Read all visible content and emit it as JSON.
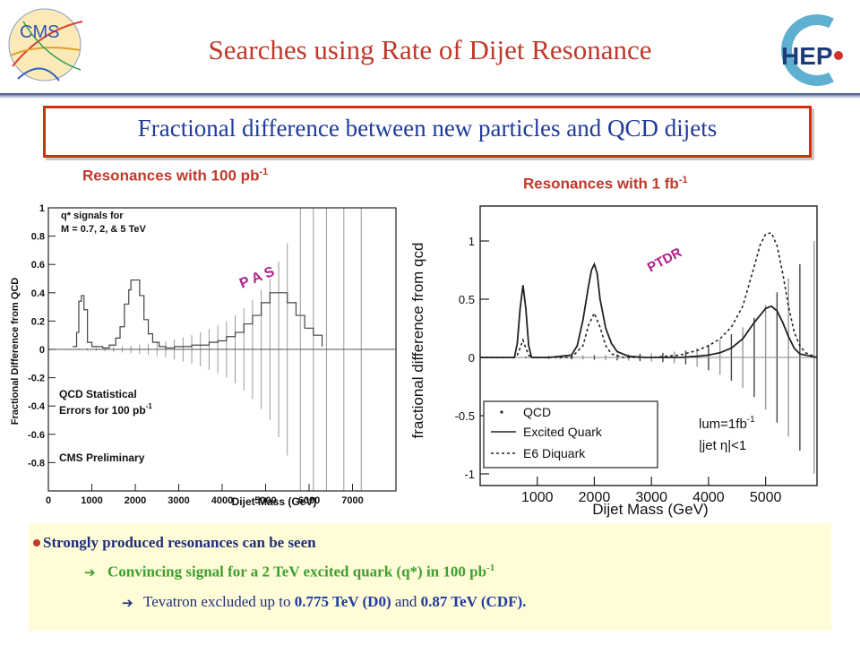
{
  "slide": {
    "title": "Searches using Rate of Dijet Resonance",
    "subtitle": "Fractional difference between new particles and QCD dijets",
    "logos": {
      "left": "CMS",
      "right": "HEP"
    }
  },
  "bullets": {
    "b1": "Strongly produced resonances can be seen",
    "b2": "Convincing signal for a 2 TeV excited quark (q*) in 100 pb",
    "b2_sup": "-1",
    "b3_pre": "Tevatron excluded up to",
    "b3_v1": "0.775 TeV (D0)",
    "b3_mid": "and",
    "b3_v2": "0.87 TeV (CDF)."
  },
  "chart_data": [
    {
      "type": "line",
      "panel_title": "Resonances with 100 pb",
      "panel_title_sup": "-1",
      "stamp": "P A S",
      "xlabel": "Dijet Mass (GeV)",
      "ylabel": "Fractional Difference from QCD",
      "xlim": [
        0,
        8000
      ],
      "ylim": [
        -1,
        1
      ],
      "xticks": [
        0,
        1000,
        2000,
        3000,
        4000,
        5000,
        6000,
        7000
      ],
      "yticks": [
        -0.8,
        -0.6,
        -0.4,
        -0.2,
        0,
        0.2,
        0.4,
        0.6,
        0.8,
        1
      ],
      "annotations": {
        "signals_l1": "q* signals for",
        "signals_l2": "M = 0.7, 2, & 5 TeV",
        "qcd_l1": "QCD Statistical",
        "qcd_l2": "Errors for 100 pb",
        "qcd_l2_sup": "-1",
        "prelim": "CMS Preliminary"
      },
      "series": [
        {
          "x": [
            560,
            650,
            700,
            760,
            820,
            900,
            1000,
            1100,
            1250,
            1400,
            1550,
            1650,
            1750,
            1850,
            1900,
            2000,
            2100,
            2200,
            2300,
            2400,
            2550,
            2700,
            2900,
            3100,
            3300,
            3500,
            3700,
            3900,
            4100,
            4300,
            4500,
            4700,
            4900,
            5100,
            5300,
            5500,
            5700,
            5900,
            6100,
            6300
          ],
          "y": [
            0.02,
            0.12,
            0.34,
            0.38,
            0.28,
            0.05,
            0.02,
            0.02,
            0.01,
            0.03,
            0.08,
            0.16,
            0.32,
            0.42,
            0.49,
            0.49,
            0.38,
            0.21,
            0.11,
            0.05,
            0.02,
            0.01,
            0.02,
            0.02,
            0.03,
            0.03,
            0.05,
            0.06,
            0.09,
            0.12,
            0.18,
            0.24,
            0.33,
            0.4,
            0.4,
            0.33,
            0.24,
            0.15,
            0.1,
            0.02
          ]
        }
      ],
      "error_bars": {
        "x": [
          500,
          700,
          900,
          1100,
          1300,
          1500,
          1700,
          1900,
          2100,
          2300,
          2500,
          2700,
          2900,
          3100,
          3300,
          3500,
          3700,
          3900,
          4100,
          4300,
          4500,
          4700,
          4900,
          5100,
          5300,
          5500,
          5800,
          6100,
          6400,
          6800,
          7200
        ],
        "err": [
          0.004,
          0.006,
          0.008,
          0.011,
          0.014,
          0.018,
          0.022,
          0.027,
          0.033,
          0.04,
          0.048,
          0.058,
          0.07,
          0.085,
          0.1,
          0.12,
          0.145,
          0.17,
          0.2,
          0.24,
          0.29,
          0.35,
          0.42,
          0.5,
          0.62,
          0.75,
          1,
          1,
          1,
          1,
          1
        ]
      }
    },
    {
      "type": "line",
      "panel_title": "Resonances with 1 fb",
      "panel_title_sup": "-1",
      "stamp": "PTDR",
      "xlabel": "Dijet Mass (GeV)",
      "ylabel": "fractional difference from qcd",
      "xlim": [
        0,
        5900
      ],
      "ylim": [
        -1.1,
        1.3
      ],
      "xticks": [
        1000,
        2000,
        3000,
        4000,
        5000
      ],
      "yticks": [
        -1,
        -0.5,
        0,
        0.5,
        1
      ],
      "legend": {
        "placement": "bottom-left",
        "entries": [
          "QCD",
          "Excited Quark",
          "E6 Diquark"
        ]
      },
      "annotations": {
        "lum": "lum=1fb",
        "lum_sup": "-1",
        "eta": "|jet η|<1"
      },
      "series": [
        {
          "name": "Excited Quark",
          "x": [
            0,
            400,
            600,
            650,
            700,
            750,
            800,
            850,
            900,
            1200,
            1600,
            1700,
            1800,
            1900,
            1950,
            2000,
            2050,
            2100,
            2200,
            2300,
            2400,
            2600,
            2900,
            3200,
            3500,
            3800,
            4000,
            4200,
            4400,
            4600,
            4800,
            5000,
            5100,
            5200,
            5300,
            5400,
            5500,
            5600,
            5900
          ],
          "y": [
            0,
            0,
            0,
            0.12,
            0.42,
            0.62,
            0.42,
            0.1,
            0,
            0,
            0.02,
            0.1,
            0.32,
            0.62,
            0.75,
            0.8,
            0.72,
            0.5,
            0.25,
            0.12,
            0.05,
            0.01,
            0,
            0,
            0,
            0.01,
            0.02,
            0.04,
            0.08,
            0.16,
            0.3,
            0.42,
            0.44,
            0.4,
            0.3,
            0.18,
            0.08,
            0.03,
            0
          ]
        },
        {
          "name": "E6 Diquark",
          "x": [
            0,
            600,
            650,
            700,
            750,
            800,
            850,
            900,
            1600,
            1800,
            1900,
            2000,
            2100,
            2200,
            2300,
            2500,
            3000,
            3500,
            3800,
            4000,
            4200,
            4400,
            4600,
            4800,
            4900,
            5000,
            5100,
            5200,
            5300,
            5400,
            5500,
            5600,
            5700,
            5900
          ],
          "y": [
            0,
            0,
            0.02,
            0.08,
            0.15,
            0.08,
            0.02,
            0,
            0,
            0.1,
            0.28,
            0.38,
            0.26,
            0.1,
            0.03,
            0,
            0,
            0.02,
            0.06,
            0.1,
            0.16,
            0.26,
            0.44,
            0.78,
            0.96,
            1.06,
            1.07,
            0.96,
            0.72,
            0.44,
            0.22,
            0.1,
            0.04,
            0
          ]
        }
      ],
      "error_bars": {
        "x": [
          600,
          800,
          1000,
          1200,
          1400,
          1600,
          1800,
          2000,
          2200,
          2400,
          2600,
          2800,
          3000,
          3200,
          3400,
          3600,
          3800,
          4000,
          4200,
          4400,
          4600,
          4800,
          5000,
          5200,
          5400,
          5600,
          5850
        ],
        "err": [
          0.006,
          0.008,
          0.01,
          0.012,
          0.014,
          0.016,
          0.018,
          0.02,
          0.022,
          0.025,
          0.028,
          0.032,
          0.036,
          0.04,
          0.05,
          0.06,
          0.08,
          0.11,
          0.15,
          0.2,
          0.26,
          0.34,
          0.45,
          0.56,
          0.68,
          0.8,
          1
        ]
      }
    }
  ]
}
